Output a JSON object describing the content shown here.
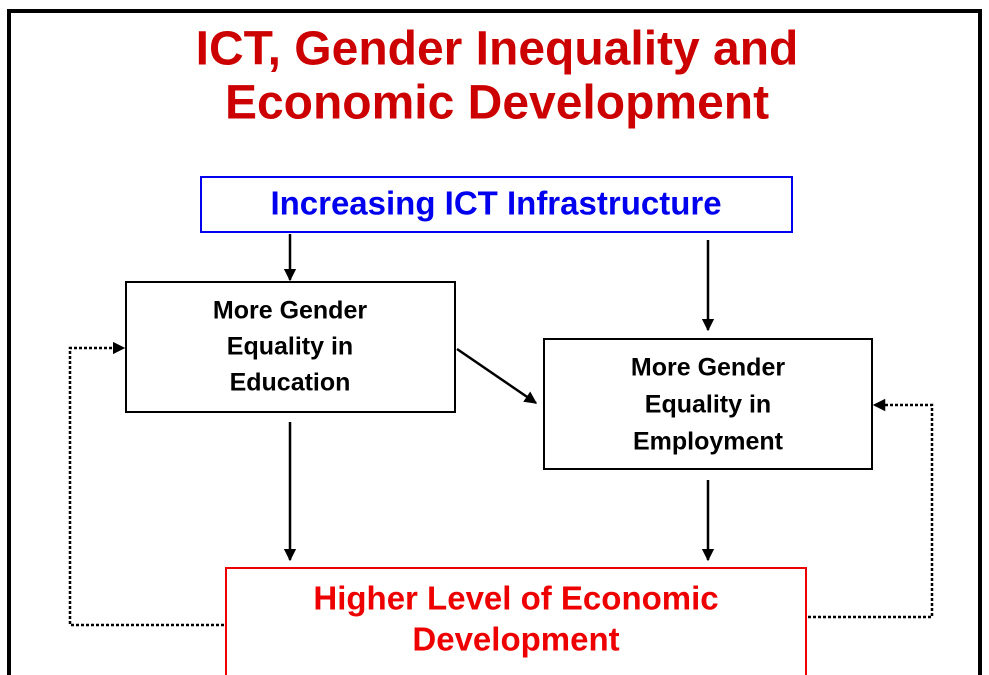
{
  "title": [
    "ICT, Gender Inequality and",
    "Economic Development"
  ],
  "nodes": [
    {
      "label": [
        "Increasing ICT Infrastructure"
      ]
    },
    {
      "label": [
        "More Gender",
        "Equality in",
        "Education"
      ]
    },
    {
      "label": [
        "More Gender",
        "Equality in",
        "Employment"
      ]
    },
    {
      "label": [
        "Higher Level of Economic",
        "Development"
      ]
    }
  ]
}
